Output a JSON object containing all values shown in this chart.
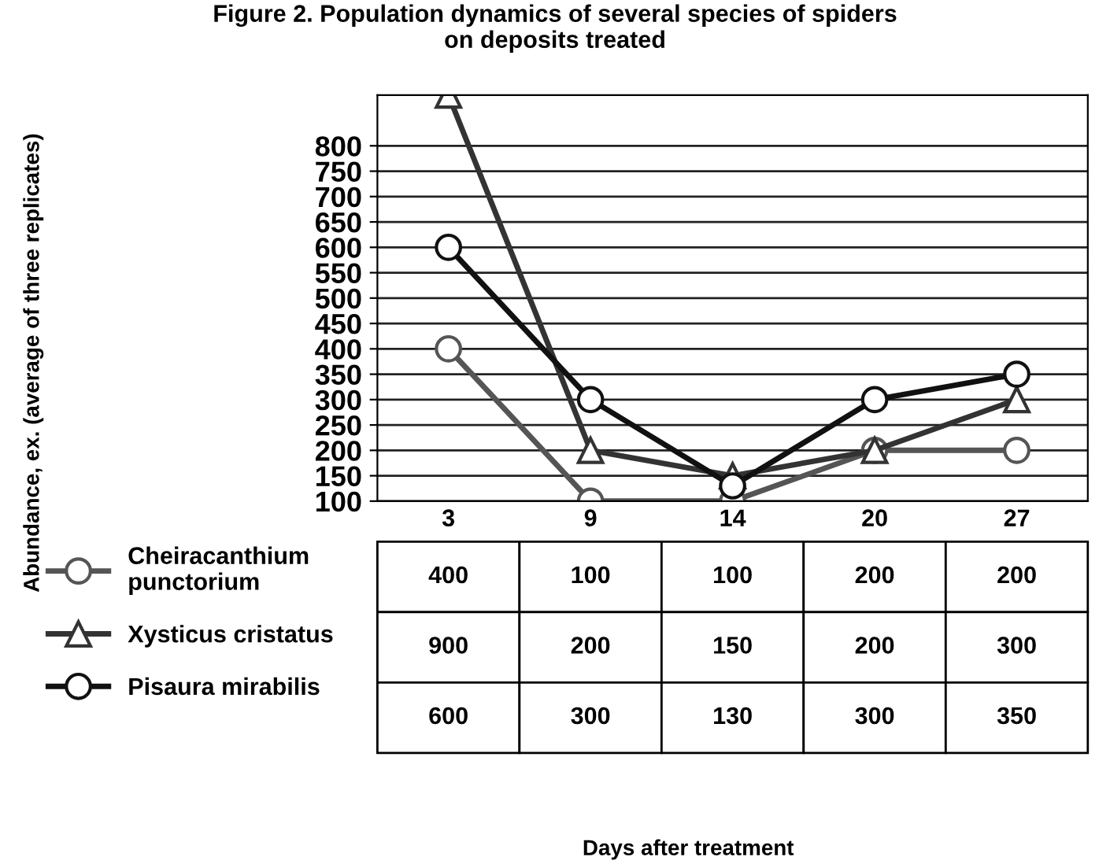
{
  "chart_data": {
    "type": "line",
    "title": "Figure 2. Population dynamics of several species of spiders\non deposits treated",
    "annotations": [
      "Abundance, ex. (average of three replicates)",
      "Days after treatment"
    ],
    "categories": [
      "3",
      "9",
      "14",
      "20",
      "27"
    ],
    "series": [
      {
        "name": "Cheiracanthium\npunctorium",
        "color": "#555555",
        "values": [
          400,
          100,
          100,
          200,
          200
        ]
      },
      {
        "name": "Xysticus cristatus",
        "color": "#333333",
        "marker": "triangle",
        "values": [
          900,
          200,
          150,
          200,
          300
        ]
      },
      {
        "name": "Pisaura mirabilis",
        "color": "#111111",
        "values": [
          600,
          300,
          130,
          300,
          350
        ]
      }
    ],
    "ylim": [
      100,
      900
    ],
    "yticks": [
      100,
      150,
      200,
      250,
      300,
      350,
      400,
      450,
      500,
      550,
      600,
      650,
      700,
      750,
      800
    ],
    "grid": "y",
    "data_labels": true,
    "marker": "circle",
    "line_style": "solid",
    "legend": "bottom left"
  }
}
